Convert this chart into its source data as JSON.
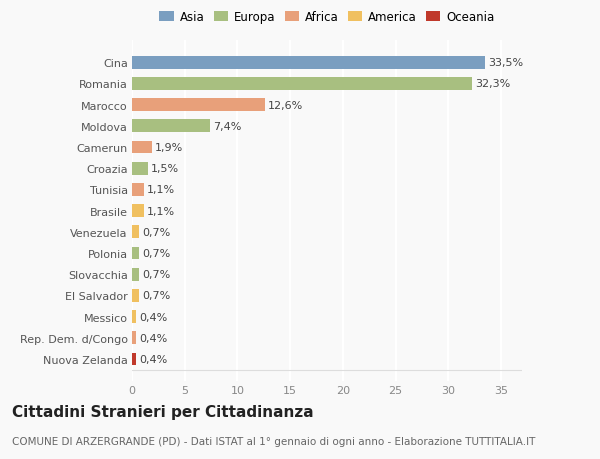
{
  "categories": [
    "Nuova Zelanda",
    "Rep. Dem. d/Congo",
    "Messico",
    "El Salvador",
    "Slovacchia",
    "Polonia",
    "Venezuela",
    "Brasile",
    "Tunisia",
    "Croazia",
    "Camerun",
    "Moldova",
    "Marocco",
    "Romania",
    "Cina"
  ],
  "values": [
    0.4,
    0.4,
    0.4,
    0.7,
    0.7,
    0.7,
    0.7,
    1.1,
    1.1,
    1.5,
    1.9,
    7.4,
    12.6,
    32.3,
    33.5
  ],
  "labels": [
    "0,4%",
    "0,4%",
    "0,4%",
    "0,7%",
    "0,7%",
    "0,7%",
    "0,7%",
    "1,1%",
    "1,1%",
    "1,5%",
    "1,9%",
    "7,4%",
    "12,6%",
    "32,3%",
    "33,5%"
  ],
  "colors": [
    "#c0392b",
    "#e8a07a",
    "#f0c060",
    "#f0c060",
    "#a8bf80",
    "#a8bf80",
    "#f0c060",
    "#f0c060",
    "#e8a07a",
    "#a8bf80",
    "#e8a07a",
    "#a8bf80",
    "#e8a07a",
    "#a8bf80",
    "#7a9ec0"
  ],
  "legend": [
    {
      "label": "Asia",
      "color": "#7a9ec0"
    },
    {
      "label": "Europa",
      "color": "#a8bf80"
    },
    {
      "label": "Africa",
      "color": "#e8a07a"
    },
    {
      "label": "America",
      "color": "#f0c060"
    },
    {
      "label": "Oceania",
      "color": "#c0392b"
    }
  ],
  "title": "Cittadini Stranieri per Cittadinanza",
  "subtitle": "COMUNE DI ARZERGRANDE (PD) - Dati ISTAT al 1° gennaio di ogni anno - Elaborazione TUTTITALIA.IT",
  "xlim": [
    0,
    37
  ],
  "xticks": [
    0,
    5,
    10,
    15,
    20,
    25,
    30,
    35
  ],
  "background_color": "#f9f9f9",
  "grid_color": "#ffffff",
  "bar_height": 0.6,
  "title_fontsize": 11,
  "subtitle_fontsize": 7.5,
  "tick_fontsize": 8,
  "label_fontsize": 8,
  "legend_fontsize": 8.5
}
